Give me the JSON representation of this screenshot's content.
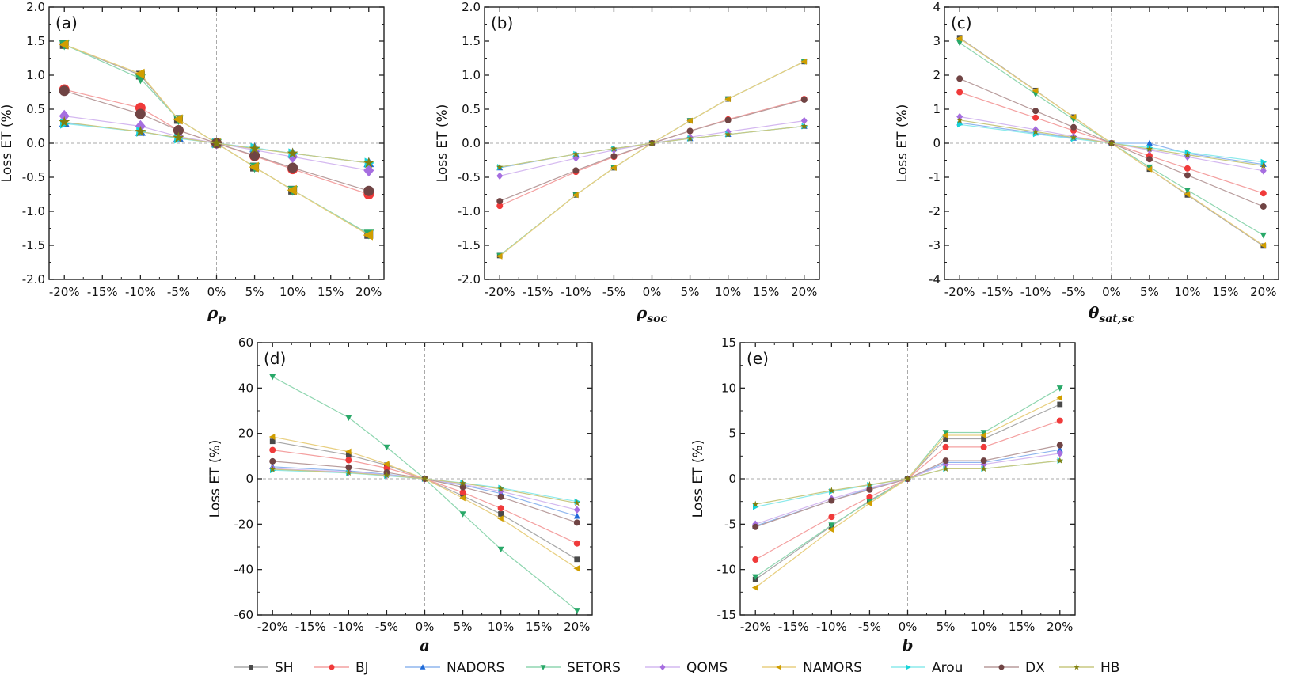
{
  "chart_data": {
    "type": "line",
    "series_names": [
      "SH",
      "BJ",
      "NADORS",
      "SETORS",
      "QOMS",
      "NAMORS",
      "Arou",
      "DX",
      "HB"
    ],
    "series_colors": {
      "SH": {
        "marker": "#4a4a4a",
        "line": "#a8a8a8",
        "shape": "square"
      },
      "BJ": {
        "marker": "#f03a3a",
        "line": "#f4a0a0",
        "shape": "circle"
      },
      "NADORS": {
        "marker": "#1e6ad8",
        "line": "#8fb6ee",
        "shape": "triangle-up"
      },
      "SETORS": {
        "marker": "#28a868",
        "line": "#8fd6b0",
        "shape": "triangle-down"
      },
      "QOMS": {
        "marker": "#a66ee0",
        "line": "#d4b8f0",
        "shape": "diamond"
      },
      "NAMORS": {
        "marker": "#d09e00",
        "line": "#e8cf80",
        "shape": "triangle-left"
      },
      "Arou": {
        "marker": "#18d4d8",
        "line": "#8ceaec",
        "shape": "triangle-right"
      },
      "DX": {
        "marker": "#704444",
        "line": "#b89c9c",
        "shape": "circle"
      },
      "HB": {
        "marker": "#808010",
        "line": "#c8c880",
        "shape": "star"
      }
    },
    "legend_placement": "bottom",
    "panels": [
      {
        "label": "(a)",
        "ylabel": "Loss ET (%)",
        "xlabel": {
          "main": "ρ",
          "sub": "p"
        },
        "x": [
          -20,
          -10,
          -5,
          0,
          5,
          10,
          20
        ],
        "xlim": [
          -22,
          22
        ],
        "xticks": [
          -20,
          -15,
          -10,
          -5,
          0,
          5,
          10,
          15,
          20
        ],
        "xtick_labels": [
          "-20%",
          "-15%",
          "-10%",
          "-5%",
          "0%",
          "5%",
          "10%",
          "15%",
          "20%"
        ],
        "ylim": [
          -2,
          2
        ],
        "yticks": [
          -2,
          -1.5,
          -1,
          -0.5,
          0,
          0.5,
          1,
          1.5,
          2
        ],
        "ytick_labels": [
          "-2.0",
          "-1.5",
          "-1.0",
          "-0.5",
          "0.0",
          "0.5",
          "1.0",
          "1.5",
          "2.0"
        ],
        "series": [
          {
            "name": "SH",
            "values": [
              1.45,
              1.0,
              0.35,
              0,
              -0.35,
              -0.69,
              -1.34
            ]
          },
          {
            "name": "BJ",
            "values": [
              0.79,
              0.52,
              0.19,
              0,
              -0.19,
              -0.38,
              -0.75
            ]
          },
          {
            "name": "NADORS",
            "values": [
              0.3,
              0.17,
              0.08,
              0,
              -0.07,
              -0.15,
              -0.29
            ]
          },
          {
            "name": "SETORS",
            "values": [
              1.45,
              0.95,
              0.35,
              0,
              -0.35,
              -0.69,
              -1.33
            ]
          },
          {
            "name": "QOMS",
            "values": [
              0.4,
              0.25,
              0.1,
              0,
              -0.1,
              -0.2,
              -0.4
            ]
          },
          {
            "name": "NAMORS",
            "values": [
              1.45,
              1.02,
              0.35,
              0,
              -0.35,
              -0.69,
              -1.35
            ]
          },
          {
            "name": "Arou",
            "values": [
              0.29,
              0.17,
              0.07,
              0,
              -0.07,
              -0.15,
              -0.29
            ]
          },
          {
            "name": "DX",
            "values": [
              0.77,
              0.43,
              0.19,
              0,
              -0.18,
              -0.36,
              -0.7
            ]
          },
          {
            "name": "HB",
            "values": [
              0.31,
              0.17,
              0.08,
              0,
              -0.08,
              -0.15,
              -0.29
            ]
          }
        ]
      },
      {
        "label": "(b)",
        "ylabel": "Loss ET (%)",
        "xlabel": {
          "main": "ρ",
          "sub": "soc"
        },
        "x": [
          -20,
          -10,
          -5,
          0,
          5,
          10,
          20
        ],
        "xlim": [
          -22,
          22
        ],
        "xticks": [
          -20,
          -15,
          -10,
          -5,
          0,
          5,
          10,
          15,
          20
        ],
        "xtick_labels": [
          "-20%",
          "-15%",
          "-10%",
          "-5%",
          "0%",
          "5%",
          "10%",
          "15%",
          "20%"
        ],
        "ylim": [
          -2,
          2
        ],
        "yticks": [
          -2,
          -1.5,
          -1,
          -0.5,
          0,
          0.5,
          1,
          1.5,
          2
        ],
        "ytick_labels": [
          "-2.0",
          "-1.5",
          "-1.0",
          "-0.5",
          "0.0",
          "0.5",
          "1.0",
          "1.5",
          "2.0"
        ],
        "series": [
          {
            "name": "SH",
            "values": [
              -1.65,
              -0.76,
              -0.36,
              0,
              0.33,
              0.65,
              1.2
            ]
          },
          {
            "name": "BJ",
            "values": [
              -0.92,
              -0.42,
              -0.2,
              0,
              0.18,
              0.35,
              0.65
            ]
          },
          {
            "name": "NADORS",
            "values": [
              -0.36,
              -0.16,
              -0.08,
              0,
              0.07,
              0.13,
              0.25
            ]
          },
          {
            "name": "SETORS",
            "values": [
              -1.65,
              -0.76,
              -0.36,
              0,
              0.33,
              0.65,
              1.2
            ]
          },
          {
            "name": "QOMS",
            "values": [
              -0.48,
              -0.22,
              -0.1,
              0,
              0.09,
              0.17,
              0.33
            ]
          },
          {
            "name": "NAMORS",
            "values": [
              -1.66,
              -0.76,
              -0.36,
              0,
              0.33,
              0.65,
              1.2
            ]
          },
          {
            "name": "Arou",
            "values": [
              -0.35,
              -0.16,
              -0.08,
              0,
              0.07,
              0.13,
              0.25
            ]
          },
          {
            "name": "DX",
            "values": [
              -0.85,
              -0.4,
              -0.19,
              0,
              0.18,
              0.34,
              0.64
            ]
          },
          {
            "name": "HB",
            "values": [
              -0.35,
              -0.16,
              -0.08,
              0,
              0.07,
              0.13,
              0.25
            ]
          }
        ]
      },
      {
        "label": "(c)",
        "ylabel": "Loss ET (%)",
        "xlabel": {
          "main": "θ",
          "sub": "sat,sc"
        },
        "x": [
          -20,
          -10,
          -5,
          0,
          5,
          10,
          20
        ],
        "xlim": [
          -22,
          22
        ],
        "xticks": [
          -20,
          -15,
          -10,
          -5,
          0,
          5,
          10,
          15,
          20
        ],
        "xtick_labels": [
          "-20%",
          "-15%",
          "-10%",
          "-5%",
          "0%",
          "5%",
          "10%",
          "15%",
          "20%"
        ],
        "ylim": [
          -4,
          4
        ],
        "yticks": [
          -4,
          -3,
          -2,
          -1,
          0,
          1,
          2,
          3,
          4
        ],
        "ytick_labels": [
          "-4",
          "-3",
          "-2",
          "-1",
          "0",
          "1",
          "2",
          "3",
          "4"
        ],
        "series": [
          {
            "name": "SH",
            "values": [
              3.1,
              1.55,
              0.77,
              0,
              -0.76,
              -1.52,
              -3.02
            ]
          },
          {
            "name": "BJ",
            "values": [
              1.5,
              0.75,
              0.37,
              0,
              -0.37,
              -0.74,
              -1.47
            ]
          },
          {
            "name": "NADORS",
            "values": [
              0.6,
              0.3,
              0.15,
              0,
              0.0,
              -0.3,
              -0.62
            ]
          },
          {
            "name": "SETORS",
            "values": [
              2.95,
              1.45,
              0.7,
              0,
              -0.7,
              -1.38,
              -2.7
            ]
          },
          {
            "name": "QOMS",
            "values": [
              0.78,
              0.4,
              0.2,
              0,
              -0.2,
              -0.4,
              -0.81
            ]
          },
          {
            "name": "NAMORS",
            "values": [
              3.08,
              1.54,
              0.77,
              0,
              -0.76,
              -1.5,
              -3.0
            ]
          },
          {
            "name": "Arou",
            "values": [
              0.55,
              0.27,
              0.13,
              0,
              -0.13,
              -0.27,
              -0.55
            ]
          },
          {
            "name": "DX",
            "values": [
              1.9,
              0.95,
              0.47,
              0,
              -0.47,
              -0.94,
              -1.86
            ]
          },
          {
            "name": "HB",
            "values": [
              0.68,
              0.34,
              0.17,
              0,
              -0.17,
              -0.34,
              -0.66
            ]
          }
        ]
      },
      {
        "label": "(d)",
        "ylabel": "Loss ET (%)",
        "xlabel": {
          "main": "a",
          "sub": ""
        },
        "x": [
          -20,
          -10,
          -5,
          0,
          5,
          10,
          20
        ],
        "xlim": [
          -22,
          22
        ],
        "xticks": [
          -20,
          -15,
          -10,
          -5,
          0,
          5,
          10,
          15,
          20
        ],
        "xtick_labels": [
          "-20%",
          "-15%",
          "-10%",
          "-5%",
          "0%",
          "5%",
          "10%",
          "15%",
          "20%"
        ],
        "ylim": [
          -60,
          60
        ],
        "yticks": [
          -60,
          -40,
          -20,
          0,
          20,
          40,
          60
        ],
        "ytick_labels": [
          "-60",
          "-40",
          "-20",
          "0",
          "20",
          "40",
          "60"
        ],
        "series": [
          {
            "name": "SH",
            "values": [
              16.5,
              10.5,
              6,
              0,
              -7.5,
              -15.5,
              -35.5
            ]
          },
          {
            "name": "BJ",
            "values": [
              12.7,
              8.2,
              4.7,
              0,
              -6,
              -13,
              -28.5
            ]
          },
          {
            "name": "NADORS",
            "values": [
              5.3,
              3.5,
              2,
              0,
              -2.8,
              -6.5,
              -16.5
            ]
          },
          {
            "name": "SETORS",
            "values": [
              45,
              27,
              14,
              0,
              -15.5,
              -31,
              -58
            ]
          },
          {
            "name": "QOMS",
            "values": [
              4.5,
              3,
              1.7,
              0,
              -2.5,
              -5.5,
              -13.7
            ]
          },
          {
            "name": "NAMORS",
            "values": [
              18.5,
              12,
              6.5,
              0,
              -8.5,
              -17.5,
              -39.5
            ]
          },
          {
            "name": "Arou",
            "values": [
              3.8,
              2.5,
              1.3,
              0,
              -1.8,
              -4,
              -10
            ]
          },
          {
            "name": "DX",
            "values": [
              7.7,
              5,
              2.8,
              0,
              -3.7,
              -8,
              -19.3
            ]
          },
          {
            "name": "HB",
            "values": [
              4.2,
              2.7,
              1.5,
              0,
              -2,
              -4.5,
              -10.7
            ]
          }
        ]
      },
      {
        "label": "(e)",
        "ylabel": "Loss ET (%)",
        "xlabel": {
          "main": "b",
          "sub": ""
        },
        "x": [
          -20,
          -10,
          -5,
          0,
          5,
          10,
          20
        ],
        "xlim": [
          -22,
          22
        ],
        "xticks": [
          -20,
          -15,
          -10,
          -5,
          0,
          5,
          10,
          15,
          20
        ],
        "xtick_labels": [
          "-20%",
          "-15%",
          "-10%",
          "-5%",
          "0%",
          "5%",
          "10%",
          "15%",
          "20%"
        ],
        "ylim": [
          -15,
          15
        ],
        "yticks": [
          -15,
          -10,
          -5,
          0,
          5,
          10,
          15
        ],
        "ytick_labels": [
          "-15",
          "-10",
          "-5",
          "0",
          "5",
          "10",
          "15"
        ],
        "series": [
          {
            "name": "SH",
            "values": [
              -11.1,
              -5.2,
              -2.4,
              0,
              4.4,
              4.4,
              8.2
            ]
          },
          {
            "name": "BJ",
            "values": [
              -8.9,
              -4.2,
              -2.0,
              0,
              3.5,
              3.5,
              6.4
            ]
          },
          {
            "name": "NADORS",
            "values": [
              -5.2,
              -2.4,
              -1.1,
              0,
              1.8,
              1.8,
              3.2
            ]
          },
          {
            "name": "SETORS",
            "values": [
              -10.8,
              -5.1,
              -2.5,
              0,
              5.1,
              5.1,
              10
            ]
          },
          {
            "name": "QOMS",
            "values": [
              -5.0,
              -2.2,
              -1.0,
              0,
              1.6,
              1.6,
              2.8
            ]
          },
          {
            "name": "NAMORS",
            "values": [
              -12,
              -5.6,
              -2.7,
              0,
              4.8,
              4.8,
              8.9
            ]
          },
          {
            "name": "Arou",
            "values": [
              -3.1,
              -1.4,
              -0.7,
              0,
              1.1,
              1.1,
              2.0
            ]
          },
          {
            "name": "DX",
            "values": [
              -5.3,
              -2.4,
              -1.2,
              0,
              2.0,
              2.0,
              3.7
            ]
          },
          {
            "name": "HB",
            "values": [
              -2.8,
              -1.3,
              -0.65,
              0,
              1.1,
              1.1,
              2.0
            ]
          }
        ]
      }
    ]
  }
}
